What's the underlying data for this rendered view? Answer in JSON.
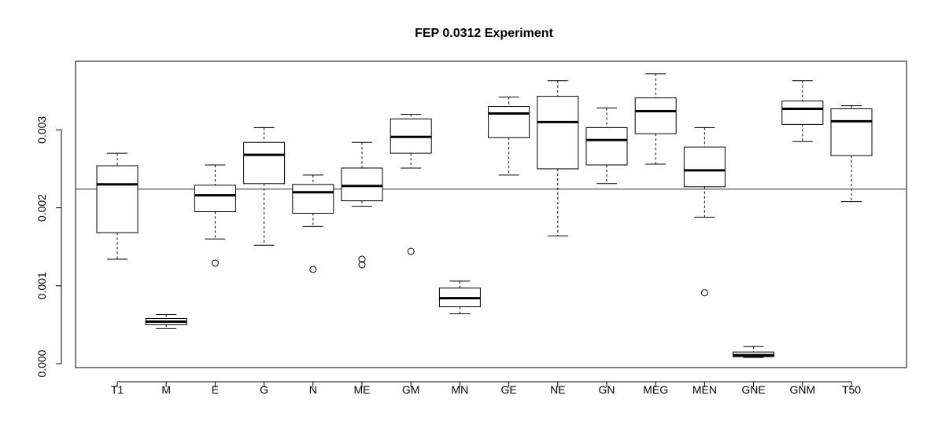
{
  "chart_data": {
    "type": "boxplot",
    "title": "FEP 0.0312 Experiment",
    "xlabel": "",
    "ylabel": "",
    "ylim": [
      -5e-05,
      0.00388
    ],
    "yticks": [
      "0.000",
      "0.001",
      "0.002",
      "0.003"
    ],
    "ytick_values": [
      0.0,
      0.001,
      0.002,
      0.003
    ],
    "reference_line": 0.00224,
    "grid": false,
    "categories": [
      "T1",
      "M",
      "E",
      "G",
      "N",
      "ME",
      "GM",
      "MN",
      "GE",
      "NE",
      "GN",
      "MEG",
      "MEN",
      "GNE",
      "GNM",
      "T50"
    ],
    "boxes": [
      {
        "name": "T1",
        "low": 0.00134,
        "q1": 0.00168,
        "median": 0.0023,
        "q3": 0.00254,
        "high": 0.0027,
        "outliers": []
      },
      {
        "name": "M",
        "low": 0.00045,
        "q1": 0.0005,
        "median": 0.00054,
        "q3": 0.00058,
        "high": 0.00063,
        "outliers": []
      },
      {
        "name": "E",
        "low": 0.0016,
        "q1": 0.00195,
        "median": 0.00216,
        "q3": 0.00229,
        "high": 0.00255,
        "outliers": [
          0.00129
        ]
      },
      {
        "name": "G",
        "low": 0.00152,
        "q1": 0.00231,
        "median": 0.00268,
        "q3": 0.00284,
        "high": 0.00303,
        "outliers": []
      },
      {
        "name": "N",
        "low": 0.00176,
        "q1": 0.00193,
        "median": 0.0022,
        "q3": 0.0023,
        "high": 0.00242,
        "outliers": [
          0.00121
        ]
      },
      {
        "name": "ME",
        "low": 0.00202,
        "q1": 0.00209,
        "median": 0.00228,
        "q3": 0.00251,
        "high": 0.00284,
        "outliers": [
          0.00134,
          0.00127
        ]
      },
      {
        "name": "GM",
        "low": 0.00251,
        "q1": 0.0027,
        "median": 0.00291,
        "q3": 0.00314,
        "high": 0.0032,
        "outliers": [
          0.00144
        ]
      },
      {
        "name": "MN",
        "low": 0.00064,
        "q1": 0.00073,
        "median": 0.00084,
        "q3": 0.00097,
        "high": 0.00106,
        "outliers": []
      },
      {
        "name": "GE",
        "low": 0.00242,
        "q1": 0.0029,
        "median": 0.00321,
        "q3": 0.0033,
        "high": 0.00342,
        "outliers": []
      },
      {
        "name": "NE",
        "low": 0.00164,
        "q1": 0.0025,
        "median": 0.0031,
        "q3": 0.00343,
        "high": 0.00363,
        "outliers": []
      },
      {
        "name": "GN",
        "low": 0.00231,
        "q1": 0.00255,
        "median": 0.00287,
        "q3": 0.00303,
        "high": 0.00328,
        "outliers": []
      },
      {
        "name": "MEG",
        "low": 0.00256,
        "q1": 0.00295,
        "median": 0.00324,
        "q3": 0.00341,
        "high": 0.00372,
        "outliers": []
      },
      {
        "name": "MEN",
        "low": 0.00188,
        "q1": 0.00227,
        "median": 0.00248,
        "q3": 0.00278,
        "high": 0.00303,
        "outliers": [
          0.00091
        ]
      },
      {
        "name": "GNE",
        "low": 8e-05,
        "q1": 9e-05,
        "median": 0.00011,
        "q3": 0.00015,
        "high": 0.00022,
        "outliers": []
      },
      {
        "name": "GNM",
        "low": 0.00285,
        "q1": 0.00307,
        "median": 0.00327,
        "q3": 0.00337,
        "high": 0.00363,
        "outliers": []
      },
      {
        "name": "T50",
        "low": 0.00208,
        "q1": 0.00267,
        "median": 0.00311,
        "q3": 0.00327,
        "high": 0.00331,
        "outliers": []
      }
    ]
  }
}
